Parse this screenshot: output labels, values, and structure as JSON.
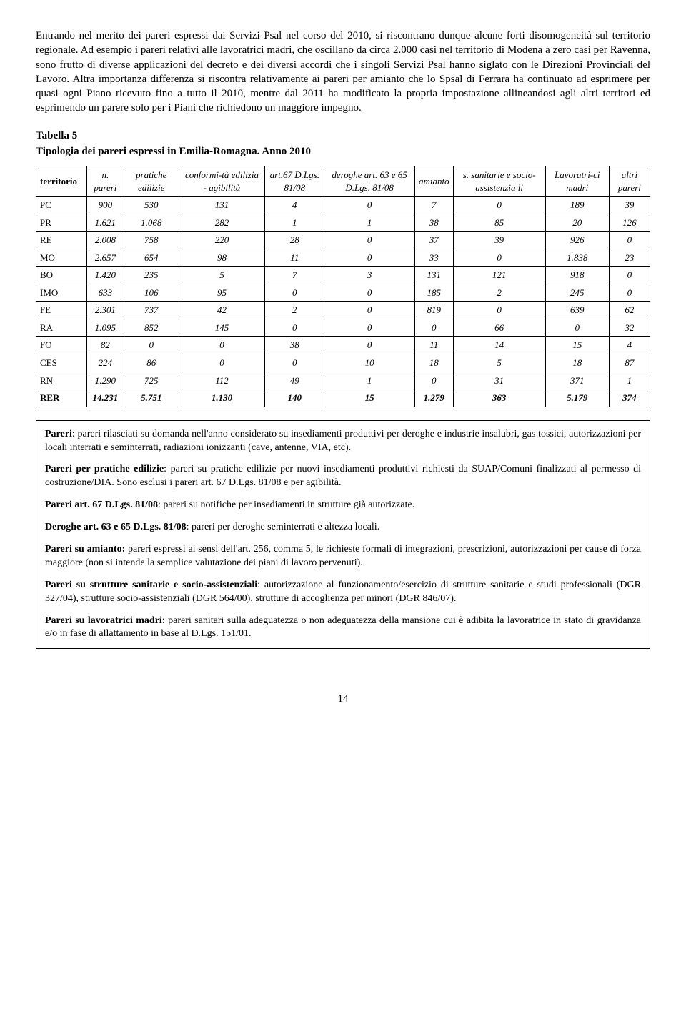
{
  "paragraph_main": "Entrando nel merito dei pareri espressi dai Servizi Psal nel corso del 2010, si riscontrano dunque alcune forti disomogeneità sul territorio regionale. Ad esempio i pareri relativi alle lavoratrici madri, che oscillano da circa 2.000 casi nel territorio di Modena a zero casi per Ravenna, sono frutto di diverse applicazioni del decreto e dei diversi accordi che i singoli Servizi Psal hanno siglato con le Direzioni Provinciali del Lavoro. Altra importanza differenza si riscontra relativamente ai pareri per amianto che lo Spsal di Ferrara ha continuato ad esprimere per quasi ogni Piano ricevuto fino a tutto il 2010, mentre dal 2011 ha modificato la propria impostazione allineandosi agli altri territori ed esprimendo un parere solo per i Piani che richiedono un maggiore impegno.",
  "table_title": "Tabella 5",
  "table_subtitle": "Tipologia dei pareri espressi in Emilia-Romagna. Anno 2010",
  "columns": [
    "territorio",
    "n. pareri",
    "pratiche edilizie",
    "conformi-tà edilizia - agibilità",
    "art.67 D.Lgs. 81/08",
    "deroghe art. 63 e 65 D.Lgs. 81/08",
    "amianto",
    "s. sanitarie e socio-assistenzia li",
    "Lavoratri-ci madri",
    "altri pareri"
  ],
  "rows": [
    [
      "PC",
      "900",
      "530",
      "131",
      "4",
      "0",
      "7",
      "0",
      "189",
      "39"
    ],
    [
      "PR",
      "1.621",
      "1.068",
      "282",
      "1",
      "1",
      "38",
      "85",
      "20",
      "126"
    ],
    [
      "RE",
      "2.008",
      "758",
      "220",
      "28",
      "0",
      "37",
      "39",
      "926",
      "0"
    ],
    [
      "MO",
      "2.657",
      "654",
      "98",
      "11",
      "0",
      "33",
      "0",
      "1.838",
      "23"
    ],
    [
      "BO",
      "1.420",
      "235",
      "5",
      "7",
      "3",
      "131",
      "121",
      "918",
      "0"
    ],
    [
      "IMO",
      "633",
      "106",
      "95",
      "0",
      "0",
      "185",
      "2",
      "245",
      "0"
    ],
    [
      "FE",
      "2.301",
      "737",
      "42",
      "2",
      "0",
      "819",
      "0",
      "639",
      "62"
    ],
    [
      "RA",
      "1.095",
      "852",
      "145",
      "0",
      "0",
      "0",
      "66",
      "0",
      "32"
    ],
    [
      "FO",
      "82",
      "0",
      "0",
      "38",
      "0",
      "11",
      "14",
      "15",
      "4"
    ],
    [
      "CES",
      "224",
      "86",
      "0",
      "0",
      "10",
      "18",
      "5",
      "18",
      "87"
    ],
    [
      "RN",
      "1.290",
      "725",
      "112",
      "49",
      "1",
      "0",
      "31",
      "371",
      "1"
    ]
  ],
  "total_row": [
    "RER",
    "14.231",
    "5.751",
    "1.130",
    "140",
    "15",
    "1.279",
    "363",
    "5.179",
    "374"
  ],
  "defs": {
    "p1_b": "Pareri",
    "p1": ": pareri rilasciati su domanda nell'anno considerato su insediamenti produttivi per deroghe e industrie insalubri, gas tossici, autorizzazioni per locali interrati e seminterrati, radiazioni ionizzanti (cave, antenne, VIA, etc).",
    "p2_b": "Pareri per pratiche edilizie",
    "p2": ": pareri su pratiche edilizie per nuovi insediamenti produttivi richiesti da SUAP/Comuni finalizzati al permesso di costruzione/DIA. Sono esclusi i pareri art. 67 D.Lgs. 81/08 e per agibilità.",
    "p3_b": "Pareri art. 67 D.Lgs. 81/08",
    "p3": ": pareri su notifiche per insediamenti in strutture già autorizzate.",
    "p4_b": "Deroghe art. 63 e 65 D.Lgs. 81/08",
    "p4": ": pareri per deroghe seminterrati e altezza locali.",
    "p5_b": "Pareri su amianto:",
    "p5": " pareri espressi ai sensi dell'art. 256, comma 5, le richieste formali di integrazioni, prescrizioni, autorizzazioni per cause di forza maggiore (non si intende la semplice valutazione dei piani di lavoro pervenuti).",
    "p6_b": "Pareri su strutture sanitarie e socio-assistenziali",
    "p6": ": autorizzazione al funzionamento/esercizio di strutture sanitarie e studi professionali (DGR 327/04), strutture socio-assistenziali (DGR 564/00), strutture di accoglienza per minori (DGR 846/07).",
    "p7_b": "Pareri su lavoratrici madri",
    "p7": ": pareri sanitari sulla adeguatezza o non adeguatezza della mansione cui è adibita la lavoratrice in stato di gravidanza e/o in fase di allattamento in base al D.Lgs. 151/01."
  },
  "page_number": "14"
}
